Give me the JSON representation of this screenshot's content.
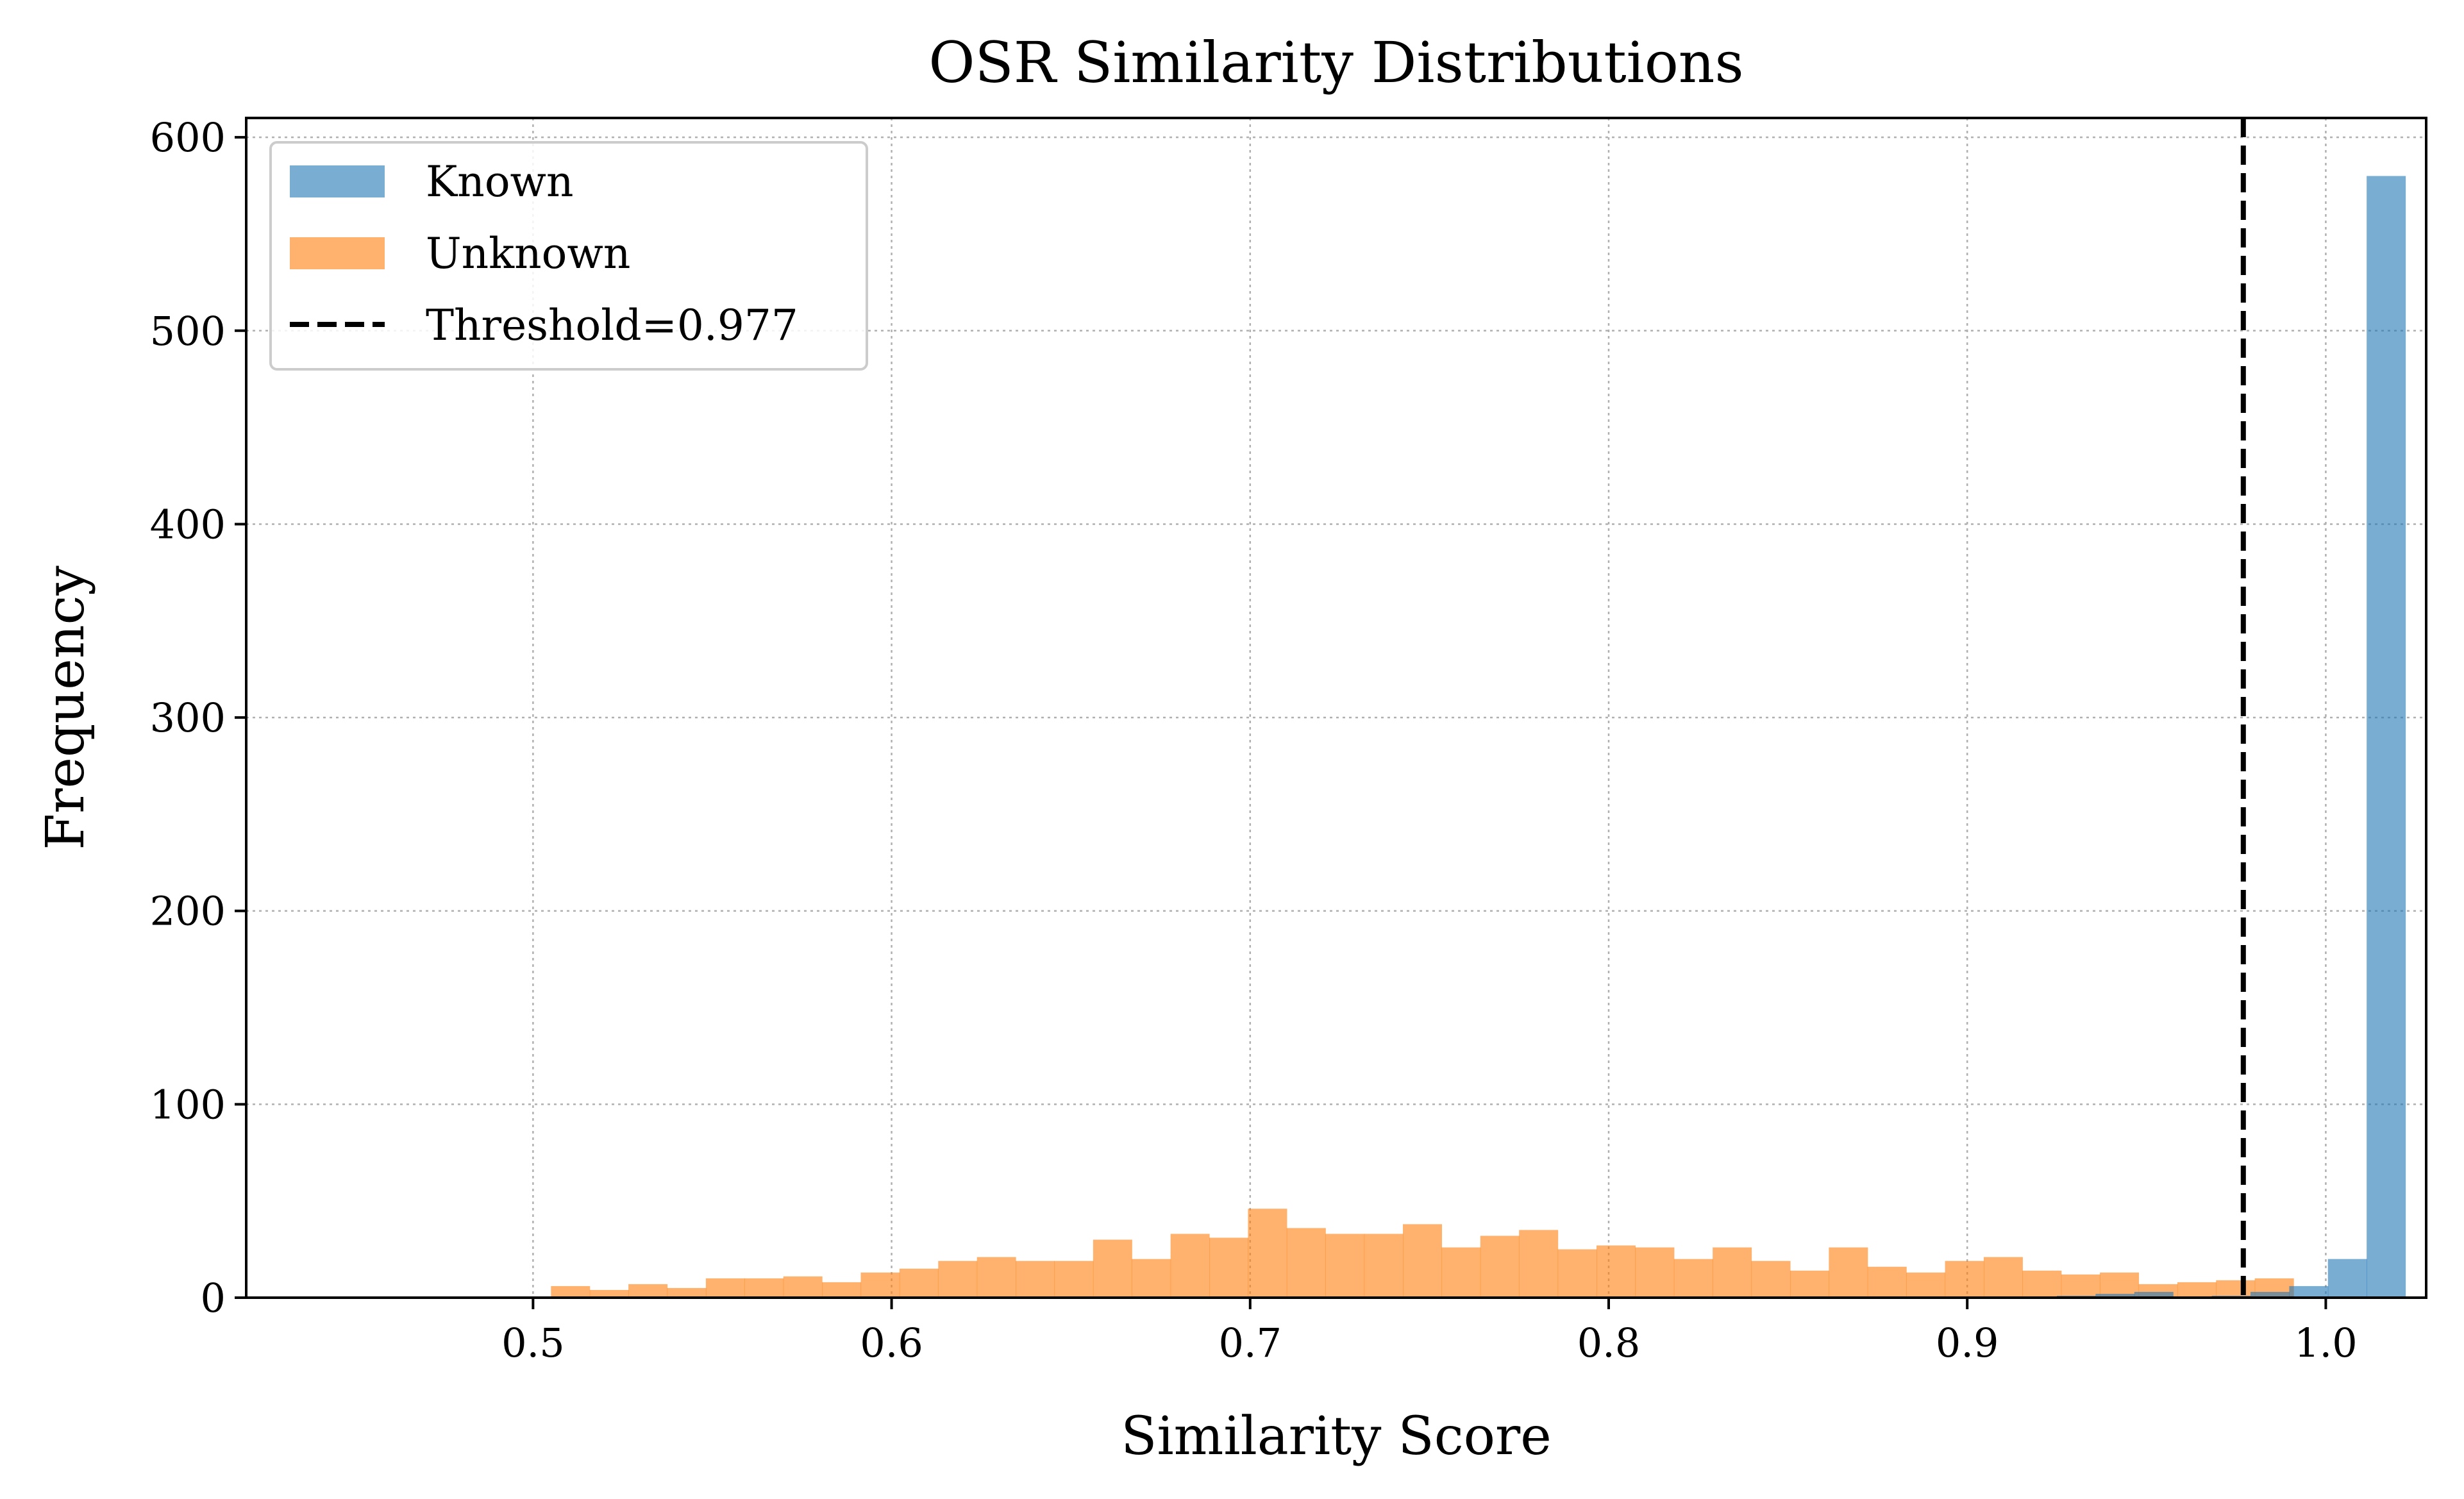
{
  "chart_data": {
    "type": "bar",
    "title": "OSR Similarity Distributions",
    "xlabel": "Similarity Score",
    "ylabel": "Frequency",
    "xlim": [
      0.42,
      1.028
    ],
    "ylim": [
      0,
      610
    ],
    "xticks": [
      0.5,
      0.6,
      0.7,
      0.8,
      0.9,
      1.0
    ],
    "xtick_labels": [
      "0.5",
      "0.6",
      "0.7",
      "0.8",
      "0.9",
      "1.0"
    ],
    "yticks": [
      0,
      100,
      200,
      300,
      400,
      500,
      600
    ],
    "ytick_labels": [
      "0",
      "100",
      "200",
      "300",
      "400",
      "500",
      "600"
    ],
    "grid": true,
    "legend_position": "top-left",
    "bin_width": 0.0108,
    "series": [
      {
        "name": "Unknown",
        "color": "#ff7f0e",
        "opacity": 0.6,
        "bin_start": 0.505,
        "values": [
          6,
          4,
          7,
          5,
          10,
          10,
          11,
          8,
          13,
          15,
          19,
          21,
          19,
          19,
          30,
          20,
          33,
          31,
          46,
          36,
          33,
          33,
          38,
          26,
          32,
          35,
          25,
          27,
          26,
          20,
          26,
          19,
          14,
          26,
          16,
          13,
          19,
          21,
          14,
          12,
          13,
          7,
          8,
          9,
          10
        ]
      },
      {
        "name": "Known",
        "color": "#1f77b4",
        "opacity": 0.6,
        "bin_start": 0.925,
        "values": [
          1,
          2,
          3,
          0,
          1,
          3,
          6,
          20,
          580
        ]
      }
    ],
    "threshold": {
      "label": "Threshold=0.977",
      "value": 0.977,
      "color": "#000000",
      "style": "dashed"
    }
  }
}
